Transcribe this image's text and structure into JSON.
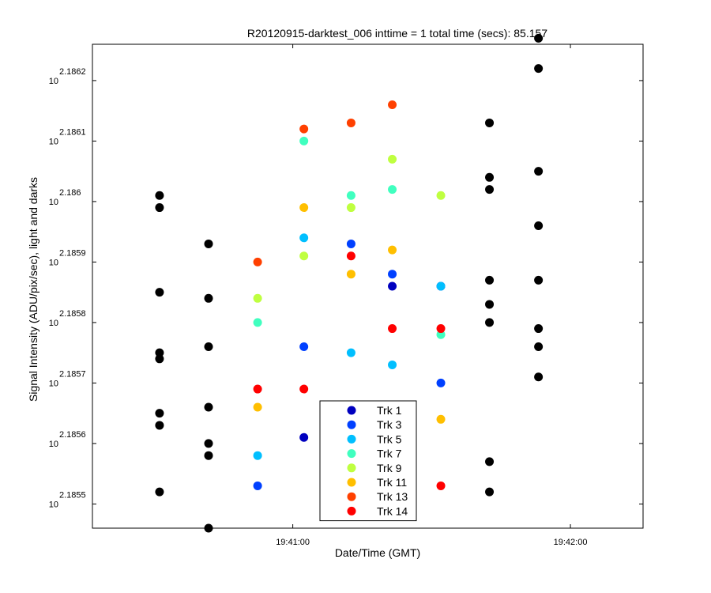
{
  "chart_data": {
    "type": "scatter",
    "title": "R20120915-darktest_006 inttime = 1 total time (secs): 85.157",
    "xlabel": "Date/Time (GMT)",
    "ylabel": "Signal Intensity (ADU/pix/sec), light and darks",
    "y_scale": "log",
    "y_tick_base": "10",
    "y_ticks": [
      {
        "exp": 2.1855,
        "label": "2.1855"
      },
      {
        "exp": 2.1856,
        "label": "2.1856"
      },
      {
        "exp": 2.1857,
        "label": "2.1857"
      },
      {
        "exp": 2.1858,
        "label": "2.1858"
      },
      {
        "exp": 2.1859,
        "label": "2.1859"
      },
      {
        "exp": 2.186,
        "label": "2.186"
      },
      {
        "exp": 2.1861,
        "label": "2.1861"
      },
      {
        "exp": 2.1862,
        "label": "2.1862"
      }
    ],
    "ylim_exp": [
      2.18546,
      2.18626
    ],
    "x_ticks": [
      {
        "sec": 60,
        "label": "19:41:00"
      },
      {
        "sec": 120,
        "label": "19:42:00"
      }
    ],
    "xlim_sec": [
      16.7,
      135.7
    ],
    "legend_position": "bottom-center",
    "series": [
      {
        "name": "",
        "color": "#000000",
        "points": [
          [
            31.2,
            2.18601
          ],
          [
            31.2,
            2.18599
          ],
          [
            31.2,
            2.18585
          ],
          [
            31.2,
            2.18575
          ],
          [
            31.2,
            2.18574
          ],
          [
            31.2,
            2.18565
          ],
          [
            31.2,
            2.18563
          ],
          [
            31.2,
            2.18552
          ],
          [
            41.8,
            2.18593
          ],
          [
            41.8,
            2.18584
          ],
          [
            41.8,
            2.18576
          ],
          [
            41.8,
            2.18566
          ],
          [
            41.8,
            2.1856
          ],
          [
            41.8,
            2.18558
          ],
          [
            41.8,
            2.18546
          ],
          [
            102.5,
            2.18613
          ],
          [
            102.5,
            2.18604
          ],
          [
            102.5,
            2.18602
          ],
          [
            102.5,
            2.18587
          ],
          [
            102.5,
            2.18583
          ],
          [
            102.5,
            2.1858
          ],
          [
            102.5,
            2.18557
          ],
          [
            102.5,
            2.18552
          ],
          [
            113.1,
            2.18627
          ],
          [
            113.1,
            2.18622
          ],
          [
            113.1,
            2.18605
          ],
          [
            113.1,
            2.18596
          ],
          [
            113.1,
            2.18587
          ],
          [
            113.1,
            2.18579
          ],
          [
            113.1,
            2.18576
          ],
          [
            113.1,
            2.18571
          ]
        ]
      },
      {
        "name": "Trk 1",
        "color": "#0000bf",
        "points": [
          [
            62.4,
            2.18561
          ],
          [
            81.5,
            2.18586
          ],
          [
            92.0,
            2.18586
          ]
        ]
      },
      {
        "name": "Trk 3",
        "color": "#0040ff",
        "points": [
          [
            52.4,
            2.18553
          ],
          [
            62.4,
            2.18576
          ],
          [
            72.6,
            2.18593
          ],
          [
            81.5,
            2.18588
          ],
          [
            92.0,
            2.1857
          ]
        ]
      },
      {
        "name": "Trk 5",
        "color": "#00bfff",
        "points": [
          [
            52.4,
            2.18558
          ],
          [
            62.4,
            2.18594
          ],
          [
            72.6,
            2.18575
          ],
          [
            81.5,
            2.18573
          ],
          [
            92.0,
            2.18586
          ]
        ]
      },
      {
        "name": "Trk 7",
        "color": "#40ffbf",
        "points": [
          [
            52.4,
            2.1858
          ],
          [
            62.4,
            2.1861
          ],
          [
            72.6,
            2.18601
          ],
          [
            81.5,
            2.18602
          ],
          [
            92.0,
            2.18578
          ]
        ]
      },
      {
        "name": "Trk 9",
        "color": "#bfff40",
        "points": [
          [
            52.4,
            2.18584
          ],
          [
            62.4,
            2.18591
          ],
          [
            72.6,
            2.18599
          ],
          [
            81.5,
            2.18607
          ],
          [
            92.0,
            2.18601
          ]
        ]
      },
      {
        "name": "Trk 11",
        "color": "#ffbf00",
        "points": [
          [
            52.4,
            2.18566
          ],
          [
            62.4,
            2.18599
          ],
          [
            72.6,
            2.18588
          ],
          [
            81.5,
            2.18592
          ],
          [
            92.0,
            2.18564
          ]
        ]
      },
      {
        "name": "Trk 13",
        "color": "#ff4000",
        "points": [
          [
            52.4,
            2.1859
          ],
          [
            62.4,
            2.18612
          ],
          [
            72.6,
            2.18613
          ],
          [
            81.5,
            2.18616
          ]
        ]
      },
      {
        "name": "Trk 14",
        "color": "#ff0000",
        "points": [
          [
            52.4,
            2.18569
          ],
          [
            62.4,
            2.18569
          ],
          [
            72.6,
            2.18591
          ],
          [
            81.5,
            2.18579
          ],
          [
            92.0,
            2.18579
          ],
          [
            92.0,
            2.18553
          ]
        ]
      }
    ]
  }
}
